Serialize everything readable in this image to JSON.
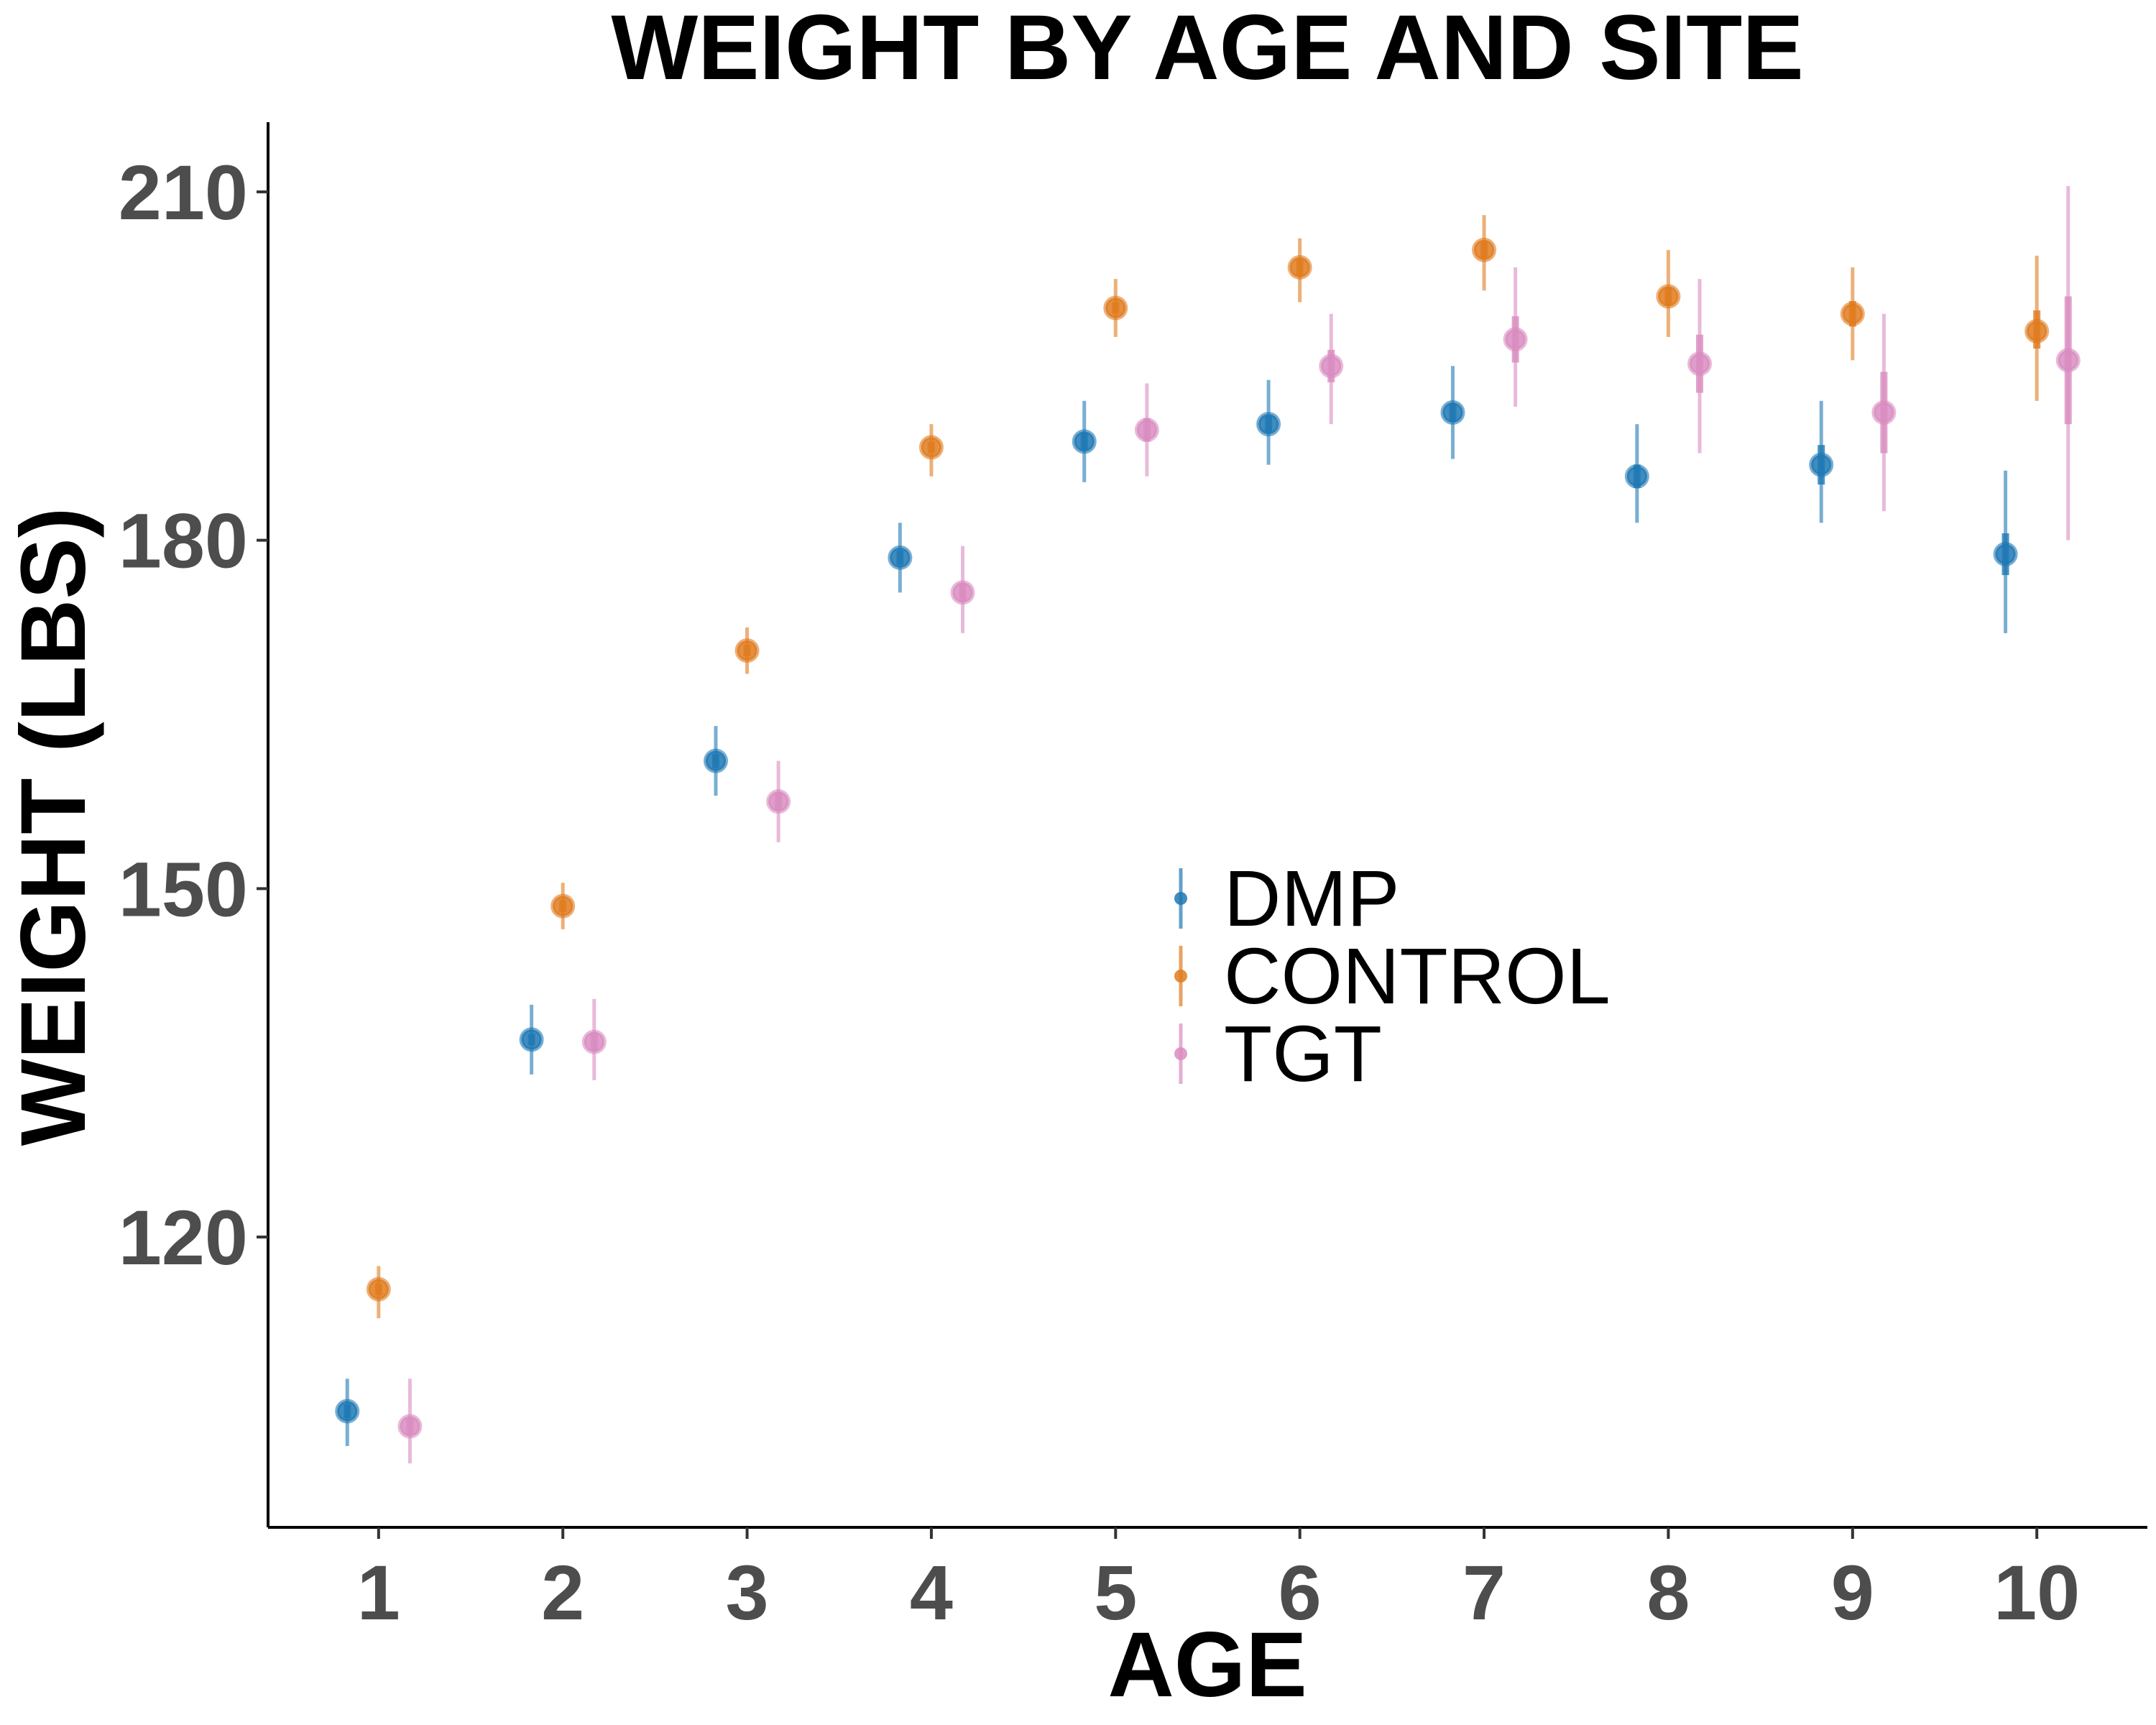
{
  "chart_data": {
    "type": "scatter",
    "title": "WEIGHT BY AGE AND SITE",
    "xlabel": "AGE",
    "ylabel": "WEIGHT (LBS)",
    "xlim": [
      0.4,
      10.6
    ],
    "ylim": [
      95,
      216
    ],
    "x_ticks": [
      1,
      2,
      3,
      4,
      5,
      6,
      7,
      8,
      9,
      10
    ],
    "y_ticks": [
      120,
      150,
      180,
      210
    ],
    "grid": false,
    "legend_position": "center",
    "series": [
      {
        "name": "DMP",
        "color": "#1f78b4",
        "dodge": -0.17,
        "x": [
          1,
          2,
          3,
          4,
          5,
          6,
          7,
          8,
          9,
          10
        ],
        "y": [
          105,
          137,
          161,
          178.5,
          188.5,
          190,
          191,
          185.5,
          186.5,
          178.8
        ],
        "ci_low": [
          102,
          134,
          158,
          175.5,
          185,
          186.5,
          187,
          181.5,
          181.5,
          172
        ],
        "ci_high": [
          107.8,
          140,
          164,
          181.5,
          192,
          193.8,
          195,
          190,
          192,
          186
        ],
        "se_low": [
          104.4,
          136.5,
          160.4,
          177.9,
          187.8,
          189.3,
          190.2,
          184.5,
          184.8,
          177
        ],
        "se_high": [
          105.6,
          137.5,
          161.6,
          179.1,
          189.2,
          190.7,
          191.8,
          186.5,
          188.2,
          180.6
        ]
      },
      {
        "name": "CONTROL",
        "color": "#e07b1f",
        "dodge": 0,
        "x": [
          1,
          2,
          3,
          4,
          5,
          6,
          7,
          8,
          9,
          10
        ],
        "y": [
          115.5,
          148.5,
          170.5,
          188,
          200,
          203.5,
          205,
          201,
          199.5,
          198
        ],
        "ci_low": [
          113,
          146.5,
          168.5,
          185.5,
          197.5,
          200.5,
          201.5,
          197.5,
          195.5,
          192
        ],
        "ci_high": [
          117.5,
          150.5,
          172.5,
          190,
          202.5,
          206,
          208,
          205,
          203.5,
          204.5
        ],
        "se_low": [
          115,
          148,
          170,
          187.5,
          199.5,
          202.8,
          204.3,
          200.2,
          198.4,
          196.5
        ],
        "se_high": [
          116,
          149,
          171,
          188.5,
          200.5,
          204.2,
          205.7,
          201.8,
          200.6,
          199.8
        ]
      },
      {
        "name": "TGT",
        "color": "#d98cbf",
        "dodge": 0.17,
        "x": [
          1,
          2,
          3,
          4,
          5,
          6,
          7,
          8,
          9,
          10
        ],
        "y": [
          103.7,
          136.8,
          157.5,
          175.5,
          189.5,
          195,
          197.3,
          195.2,
          191,
          195.5
        ],
        "ci_low": [
          100.5,
          133.5,
          154,
          172,
          185.5,
          190,
          191.5,
          187.5,
          182.5,
          180
        ],
        "ci_high": [
          107.8,
          140.5,
          161,
          179.5,
          193.5,
          199.5,
          203.5,
          202.5,
          199.5,
          210.5
        ],
        "se_low": [
          103,
          136,
          156.7,
          174.7,
          188.5,
          193.6,
          195.3,
          192.7,
          187.5,
          190
        ],
        "se_high": [
          104.4,
          137.6,
          158.3,
          176.3,
          190.5,
          196.4,
          199.3,
          197.7,
          194.5,
          201
        ]
      }
    ]
  }
}
